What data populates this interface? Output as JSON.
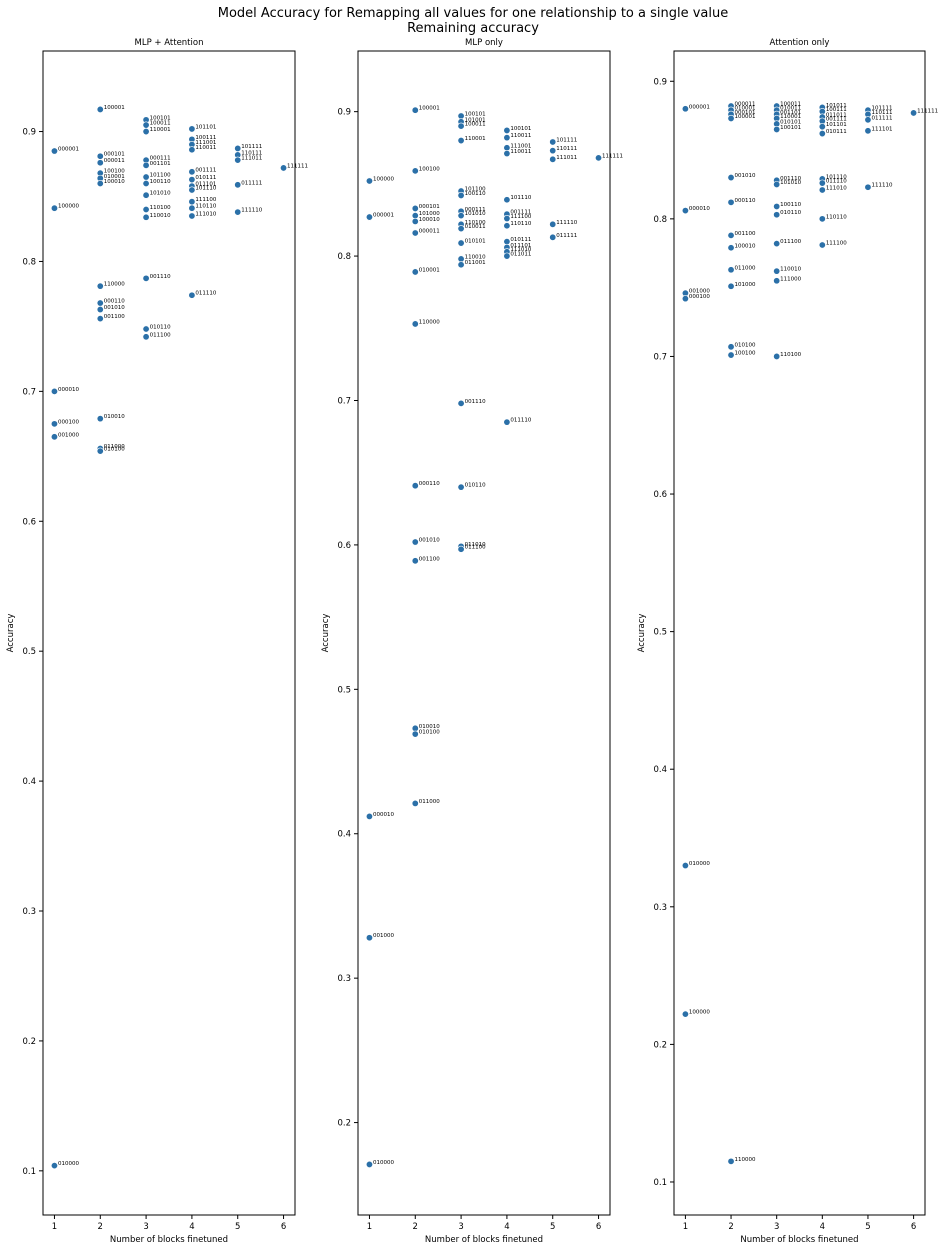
{
  "figure": {
    "title_line1": "Model Accuracy for Remapping all values for one relationship to a single value",
    "title_line2": "Remaining accuracy"
  },
  "style": {
    "point_color": "#2b70a8",
    "axis_color": "#000000"
  },
  "chart_data": [
    {
      "type": "scatter",
      "title": "MLP + Attention",
      "xlabel": "Number of blocks finetuned",
      "ylabel": "Accuracy",
      "xlim": [
        0.75,
        6.25
      ],
      "ylim": [
        0.066,
        0.962
      ],
      "xticks": [
        1,
        2,
        3,
        4,
        5,
        6
      ],
      "yticks": [
        0.1,
        0.2,
        0.3,
        0.4,
        0.5,
        0.6,
        0.7,
        0.8,
        0.9
      ],
      "points": [
        {
          "x": 1,
          "y": 0.885,
          "label": "000001"
        },
        {
          "x": 1,
          "y": 0.841,
          "label": "100000"
        },
        {
          "x": 1,
          "y": 0.7,
          "label": "000010"
        },
        {
          "x": 1,
          "y": 0.675,
          "label": "000100"
        },
        {
          "x": 1,
          "y": 0.665,
          "label": "001000"
        },
        {
          "x": 1,
          "y": 0.104,
          "label": "010000"
        },
        {
          "x": 2,
          "y": 0.917,
          "label": "100001"
        },
        {
          "x": 2,
          "y": 0.881,
          "label": "000101"
        },
        {
          "x": 2,
          "y": 0.876,
          "label": "000011"
        },
        {
          "x": 2,
          "y": 0.868,
          "label": "100100"
        },
        {
          "x": 2,
          "y": 0.864,
          "label": "010001"
        },
        {
          "x": 2,
          "y": 0.86,
          "label": "100010"
        },
        {
          "x": 2,
          "y": 0.781,
          "label": "110000"
        },
        {
          "x": 2,
          "y": 0.768,
          "label": "000110"
        },
        {
          "x": 2,
          "y": 0.763,
          "label": "001010"
        },
        {
          "x": 2,
          "y": 0.756,
          "label": "001100"
        },
        {
          "x": 2,
          "y": 0.679,
          "label": "010010"
        },
        {
          "x": 2,
          "y": 0.656,
          "label": "011000"
        },
        {
          "x": 2,
          "y": 0.654,
          "label": "010100"
        },
        {
          "x": 3,
          "y": 0.909,
          "label": "100101"
        },
        {
          "x": 3,
          "y": 0.905,
          "label": "100011"
        },
        {
          "x": 3,
          "y": 0.9,
          "label": "110001"
        },
        {
          "x": 3,
          "y": 0.878,
          "label": "000111"
        },
        {
          "x": 3,
          "y": 0.874,
          "label": "001101"
        },
        {
          "x": 3,
          "y": 0.865,
          "label": "101100"
        },
        {
          "x": 3,
          "y": 0.86,
          "label": "100110"
        },
        {
          "x": 3,
          "y": 0.851,
          "label": "101010"
        },
        {
          "x": 3,
          "y": 0.84,
          "label": "110100"
        },
        {
          "x": 3,
          "y": 0.834,
          "label": "110010"
        },
        {
          "x": 3,
          "y": 0.787,
          "label": "001110"
        },
        {
          "x": 3,
          "y": 0.748,
          "label": "010110"
        },
        {
          "x": 3,
          "y": 0.742,
          "label": "011100"
        },
        {
          "x": 4,
          "y": 0.902,
          "label": "101101"
        },
        {
          "x": 4,
          "y": 0.894,
          "label": "100111"
        },
        {
          "x": 4,
          "y": 0.89,
          "label": "111001"
        },
        {
          "x": 4,
          "y": 0.886,
          "label": "110011"
        },
        {
          "x": 4,
          "y": 0.869,
          "label": "001111"
        },
        {
          "x": 4,
          "y": 0.863,
          "label": "010111"
        },
        {
          "x": 4,
          "y": 0.858,
          "label": "011101"
        },
        {
          "x": 4,
          "y": 0.855,
          "label": "101110"
        },
        {
          "x": 4,
          "y": 0.846,
          "label": "111100"
        },
        {
          "x": 4,
          "y": 0.841,
          "label": "110110"
        },
        {
          "x": 4,
          "y": 0.835,
          "label": "111010"
        },
        {
          "x": 4,
          "y": 0.774,
          "label": "011110"
        },
        {
          "x": 5,
          "y": 0.887,
          "label": "101111"
        },
        {
          "x": 5,
          "y": 0.882,
          "label": "110111"
        },
        {
          "x": 5,
          "y": 0.878,
          "label": "111011"
        },
        {
          "x": 5,
          "y": 0.859,
          "label": "011111"
        },
        {
          "x": 5,
          "y": 0.838,
          "label": "111110"
        },
        {
          "x": 6,
          "y": 0.872,
          "label": "111111"
        }
      ]
    },
    {
      "type": "scatter",
      "title": "MLP only",
      "xlabel": "Number of blocks finetuned",
      "ylabel": "Accuracy",
      "xlim": [
        0.75,
        6.25
      ],
      "ylim": [
        0.136,
        0.942
      ],
      "xticks": [
        1,
        2,
        3,
        4,
        5,
        6
      ],
      "yticks": [
        0.2,
        0.3,
        0.4,
        0.5,
        0.6,
        0.7,
        0.8,
        0.9
      ],
      "points": [
        {
          "x": 1,
          "y": 0.852,
          "label": "100000"
        },
        {
          "x": 1,
          "y": 0.827,
          "label": "000001"
        },
        {
          "x": 1,
          "y": 0.412,
          "label": "000010"
        },
        {
          "x": 1,
          "y": 0.328,
          "label": "001000"
        },
        {
          "x": 1,
          "y": 0.171,
          "label": "010000"
        },
        {
          "x": 2,
          "y": 0.901,
          "label": "100001"
        },
        {
          "x": 2,
          "y": 0.859,
          "label": "100100"
        },
        {
          "x": 2,
          "y": 0.833,
          "label": "000101"
        },
        {
          "x": 2,
          "y": 0.828,
          "label": "101000"
        },
        {
          "x": 2,
          "y": 0.824,
          "label": "100010"
        },
        {
          "x": 2,
          "y": 0.816,
          "label": "000011"
        },
        {
          "x": 2,
          "y": 0.789,
          "label": "010001"
        },
        {
          "x": 2,
          "y": 0.753,
          "label": "110000"
        },
        {
          "x": 2,
          "y": 0.641,
          "label": "000110"
        },
        {
          "x": 2,
          "y": 0.602,
          "label": "001010"
        },
        {
          "x": 2,
          "y": 0.589,
          "label": "001100"
        },
        {
          "x": 2,
          "y": 0.473,
          "label": "010010"
        },
        {
          "x": 2,
          "y": 0.469,
          "label": "010100"
        },
        {
          "x": 2,
          "y": 0.421,
          "label": "011000"
        },
        {
          "x": 3,
          "y": 0.897,
          "label": "100101"
        },
        {
          "x": 3,
          "y": 0.893,
          "label": "101001"
        },
        {
          "x": 3,
          "y": 0.89,
          "label": "100011"
        },
        {
          "x": 3,
          "y": 0.88,
          "label": "110001"
        },
        {
          "x": 3,
          "y": 0.845,
          "label": "101100"
        },
        {
          "x": 3,
          "y": 0.842,
          "label": "100110"
        },
        {
          "x": 3,
          "y": 0.831,
          "label": "000111"
        },
        {
          "x": 3,
          "y": 0.828,
          "label": "101010"
        },
        {
          "x": 3,
          "y": 0.822,
          "label": "110100"
        },
        {
          "x": 3,
          "y": 0.819,
          "label": "010011"
        },
        {
          "x": 3,
          "y": 0.809,
          "label": "010101"
        },
        {
          "x": 3,
          "y": 0.798,
          "label": "110010"
        },
        {
          "x": 3,
          "y": 0.794,
          "label": "011001"
        },
        {
          "x": 3,
          "y": 0.698,
          "label": "001110"
        },
        {
          "x": 3,
          "y": 0.64,
          "label": "010110"
        },
        {
          "x": 3,
          "y": 0.599,
          "label": "011010"
        },
        {
          "x": 3,
          "y": 0.597,
          "label": "011100"
        },
        {
          "x": 4,
          "y": 0.887,
          "label": "100101"
        },
        {
          "x": 4,
          "y": 0.882,
          "label": "110011"
        },
        {
          "x": 4,
          "y": 0.875,
          "label": "111001"
        },
        {
          "x": 4,
          "y": 0.871,
          "label": "110011"
        },
        {
          "x": 4,
          "y": 0.839,
          "label": "101110"
        },
        {
          "x": 4,
          "y": 0.829,
          "label": "001111"
        },
        {
          "x": 4,
          "y": 0.826,
          "label": "111100"
        },
        {
          "x": 4,
          "y": 0.821,
          "label": "110110"
        },
        {
          "x": 4,
          "y": 0.81,
          "label": "010111"
        },
        {
          "x": 4,
          "y": 0.806,
          "label": "011101"
        },
        {
          "x": 4,
          "y": 0.803,
          "label": "111010"
        },
        {
          "x": 4,
          "y": 0.8,
          "label": "011011"
        },
        {
          "x": 4,
          "y": 0.685,
          "label": "011110"
        },
        {
          "x": 5,
          "y": 0.879,
          "label": "101111"
        },
        {
          "x": 5,
          "y": 0.873,
          "label": "110111"
        },
        {
          "x": 5,
          "y": 0.867,
          "label": "111011"
        },
        {
          "x": 5,
          "y": 0.822,
          "label": "111110"
        },
        {
          "x": 5,
          "y": 0.813,
          "label": "011111"
        },
        {
          "x": 6,
          "y": 0.868,
          "label": "111111"
        }
      ]
    },
    {
      "type": "scatter",
      "title": "Attention only",
      "xlabel": "Number of blocks finetuned",
      "ylabel": "Accuracy",
      "xlim": [
        0.75,
        6.25
      ],
      "ylim": [
        0.076,
        0.922
      ],
      "xticks": [
        1,
        2,
        3,
        4,
        5,
        6
      ],
      "yticks": [
        0.1,
        0.2,
        0.3,
        0.4,
        0.5,
        0.6,
        0.7,
        0.8,
        0.9
      ],
      "points": [
        {
          "x": 1,
          "y": 0.88,
          "label": "000001"
        },
        {
          "x": 1,
          "y": 0.806,
          "label": "000010"
        },
        {
          "x": 1,
          "y": 0.746,
          "label": "001000"
        },
        {
          "x": 1,
          "y": 0.742,
          "label": "000100"
        },
        {
          "x": 1,
          "y": 0.33,
          "label": "010000"
        },
        {
          "x": 1,
          "y": 0.222,
          "label": "100000"
        },
        {
          "x": 2,
          "y": 0.882,
          "label": "000011"
        },
        {
          "x": 2,
          "y": 0.879,
          "label": "010001"
        },
        {
          "x": 2,
          "y": 0.876,
          "label": "000101"
        },
        {
          "x": 2,
          "y": 0.873,
          "label": "100001"
        },
        {
          "x": 2,
          "y": 0.83,
          "label": "001010"
        },
        {
          "x": 2,
          "y": 0.812,
          "label": "000110"
        },
        {
          "x": 2,
          "y": 0.788,
          "label": "001100"
        },
        {
          "x": 2,
          "y": 0.779,
          "label": "100010"
        },
        {
          "x": 2,
          "y": 0.763,
          "label": "011000"
        },
        {
          "x": 2,
          "y": 0.751,
          "label": "101000"
        },
        {
          "x": 2,
          "y": 0.707,
          "label": "010100"
        },
        {
          "x": 2,
          "y": 0.701,
          "label": "100100"
        },
        {
          "x": 2,
          "y": 0.115,
          "label": "110000"
        },
        {
          "x": 3,
          "y": 0.882,
          "label": "100011"
        },
        {
          "x": 3,
          "y": 0.879,
          "label": "010011"
        },
        {
          "x": 3,
          "y": 0.876,
          "label": "001101"
        },
        {
          "x": 3,
          "y": 0.873,
          "label": "110001"
        },
        {
          "x": 3,
          "y": 0.869,
          "label": "010101"
        },
        {
          "x": 3,
          "y": 0.865,
          "label": "100101"
        },
        {
          "x": 3,
          "y": 0.828,
          "label": "001110"
        },
        {
          "x": 3,
          "y": 0.825,
          "label": "101010"
        },
        {
          "x": 3,
          "y": 0.809,
          "label": "100110"
        },
        {
          "x": 3,
          "y": 0.803,
          "label": "010110"
        },
        {
          "x": 3,
          "y": 0.782,
          "label": "011100"
        },
        {
          "x": 3,
          "y": 0.762,
          "label": "110010"
        },
        {
          "x": 3,
          "y": 0.755,
          "label": "111000"
        },
        {
          "x": 3,
          "y": 0.7,
          "label": "110100"
        },
        {
          "x": 4,
          "y": 0.881,
          "label": "101011"
        },
        {
          "x": 4,
          "y": 0.878,
          "label": "100111"
        },
        {
          "x": 4,
          "y": 0.874,
          "label": "011011"
        },
        {
          "x": 4,
          "y": 0.871,
          "label": "001111"
        },
        {
          "x": 4,
          "y": 0.867,
          "label": "101101"
        },
        {
          "x": 4,
          "y": 0.862,
          "label": "010111"
        },
        {
          "x": 4,
          "y": 0.829,
          "label": "101110"
        },
        {
          "x": 4,
          "y": 0.826,
          "label": "011110"
        },
        {
          "x": 4,
          "y": 0.821,
          "label": "111010"
        },
        {
          "x": 4,
          "y": 0.8,
          "label": "110110"
        },
        {
          "x": 4,
          "y": 0.781,
          "label": "111100"
        },
        {
          "x": 5,
          "y": 0.879,
          "label": "101111"
        },
        {
          "x": 5,
          "y": 0.876,
          "label": "110111"
        },
        {
          "x": 5,
          "y": 0.872,
          "label": "011111"
        },
        {
          "x": 5,
          "y": 0.864,
          "label": "111101"
        },
        {
          "x": 5,
          "y": 0.823,
          "label": "111110"
        },
        {
          "x": 6,
          "y": 0.877,
          "label": "111111"
        }
      ]
    }
  ]
}
